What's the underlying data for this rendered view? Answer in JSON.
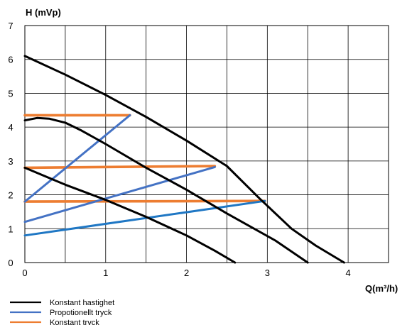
{
  "chart_data": {
    "type": "line",
    "ylabel": "H (mVp)",
    "xlabel": "Q(m³/h)",
    "xlim": [
      0,
      4.5
    ],
    "ylim": [
      0,
      7
    ],
    "xticks": [
      "0",
      "1",
      "2",
      "3",
      "4"
    ],
    "yticks": [
      "0",
      "1",
      "2",
      "3",
      "4",
      "5",
      "6",
      "7"
    ],
    "grid": true,
    "legend_position": "bottom-left",
    "legend": [
      {
        "label": "Konstant hastighet",
        "color": "#000000"
      },
      {
        "label": "Propotionellt tryck",
        "color": "#4472C4"
      },
      {
        "label": "Konstant tryck",
        "color": "#ED7D31"
      }
    ],
    "series": [
      {
        "group": "Konstant hastighet",
        "color": "#000000",
        "x": [
          0,
          0.5,
          1,
          1.5,
          2,
          2.5,
          2.9,
          3.3,
          3.6,
          3.95
        ],
        "y": [
          6.1,
          5.55,
          4.95,
          4.3,
          3.6,
          2.85,
          1.9,
          1.0,
          0.5,
          0
        ]
      },
      {
        "group": "Konstant hastighet",
        "color": "#000000",
        "x": [
          0,
          0.15,
          0.3,
          0.5,
          0.7,
          1,
          1.5,
          2,
          2.5,
          3.1,
          3.5
        ],
        "y": [
          4.2,
          4.27,
          4.25,
          4.13,
          3.9,
          3.5,
          2.8,
          2.15,
          1.45,
          0.65,
          0
        ]
      },
      {
        "group": "Konstant hastighet",
        "color": "#000000",
        "x": [
          0,
          0.5,
          1,
          1.5,
          2,
          2.35,
          2.6
        ],
        "y": [
          2.8,
          2.3,
          1.85,
          1.35,
          0.8,
          0.35,
          0
        ]
      },
      {
        "group": "Propotionellt tryck",
        "color": "#4472C4",
        "x": [
          0,
          1.3
        ],
        "y": [
          1.8,
          4.35
        ]
      },
      {
        "group": "Propotionellt tryck",
        "color": "#4472C4",
        "x": [
          0,
          2.35
        ],
        "y": [
          1.2,
          2.82
        ]
      },
      {
        "group": "Propotionellt tryck",
        "color": "#1F77C4",
        "x": [
          0,
          2.97
        ],
        "y": [
          0.8,
          1.82
        ]
      },
      {
        "group": "Konstant tryck",
        "color": "#ED7D31",
        "x": [
          0,
          1.3
        ],
        "y": [
          4.35,
          4.35
        ]
      },
      {
        "group": "Konstant tryck",
        "color": "#ED7D31",
        "x": [
          0,
          2.35
        ],
        "y": [
          2.8,
          2.85
        ]
      },
      {
        "group": "Konstant tryck",
        "color": "#ED7D31",
        "x": [
          0,
          2.97
        ],
        "y": [
          1.8,
          1.82
        ]
      }
    ]
  }
}
